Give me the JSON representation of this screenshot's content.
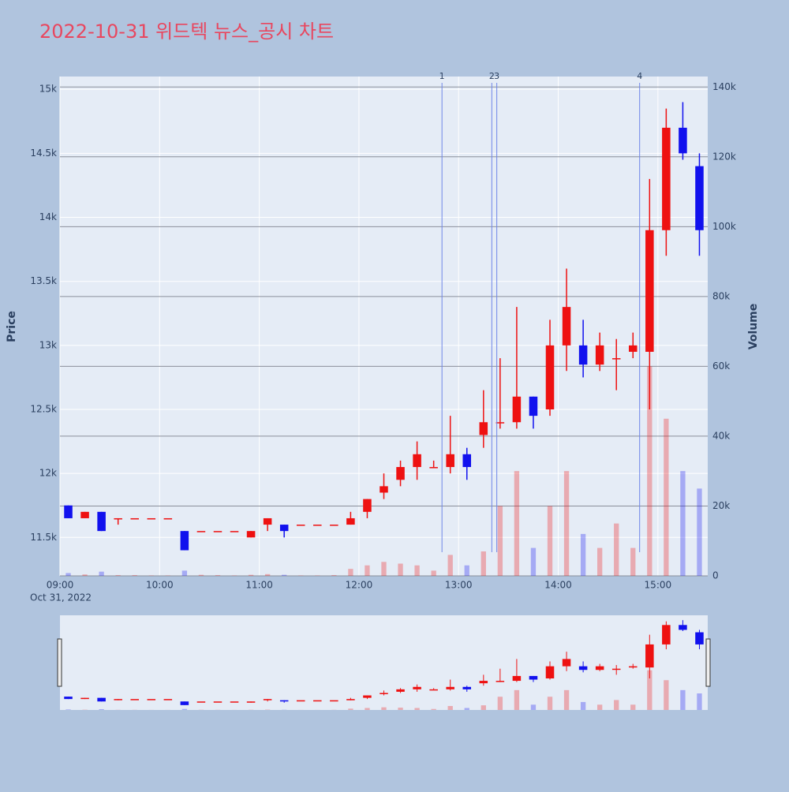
{
  "chart_data": {
    "type": "candlestick",
    "title": "2022-10-31 위드텍 뉴스_공시 차트",
    "y_label": "Price",
    "y2_label": "Volume",
    "date_label": "Oct 31, 2022",
    "x": [
      "09:00",
      "09:10",
      "09:20",
      "09:30",
      "09:40",
      "09:50",
      "10:00",
      "10:10",
      "10:20",
      "10:30",
      "10:40",
      "10:50",
      "11:00",
      "11:10",
      "11:20",
      "11:30",
      "11:40",
      "11:50",
      "12:00",
      "12:10",
      "12:20",
      "12:30",
      "12:40",
      "12:50",
      "13:00",
      "13:10",
      "13:20",
      "13:30",
      "13:40",
      "13:50",
      "14:00",
      "14:10",
      "14:20",
      "14:30",
      "14:40",
      "14:50",
      "15:00",
      "15:10",
      "15:20"
    ],
    "open": [
      11750,
      11650,
      11700,
      11650,
      11650,
      11650,
      11650,
      11550,
      11550,
      11550,
      11550,
      11500,
      11600,
      11600,
      11600,
      11600,
      11600,
      11600,
      11700,
      11850,
      11950,
      12050,
      12050,
      12050,
      12150,
      12300,
      12400,
      12400,
      12600,
      12500,
      13000,
      13000,
      12850,
      12900,
      12950,
      12950,
      13900,
      14700,
      14400
    ],
    "high": [
      11750,
      11700,
      11700,
      11650,
      11650,
      11650,
      11650,
      11550,
      11550,
      11550,
      11550,
      11550,
      11650,
      11600,
      11600,
      11600,
      11600,
      11700,
      11800,
      12000,
      12100,
      12250,
      12100,
      12450,
      12200,
      12650,
      12900,
      13300,
      12600,
      13200,
      13600,
      13200,
      13100,
      13050,
      13100,
      14300,
      14850,
      14900,
      14500
    ],
    "low": [
      11650,
      11650,
      11550,
      11600,
      11650,
      11650,
      11650,
      11400,
      11550,
      11550,
      11550,
      11500,
      11550,
      11500,
      11600,
      11600,
      11600,
      11600,
      11650,
      11800,
      11900,
      11950,
      12050,
      12000,
      11950,
      12200,
      12350,
      12350,
      12350,
      12450,
      12800,
      12750,
      12800,
      12650,
      12900,
      12500,
      13700,
      14450,
      13700
    ],
    "close": [
      11650,
      11700,
      11550,
      11650,
      11650,
      11650,
      11650,
      11400,
      11550,
      11550,
      11550,
      11550,
      11650,
      11550,
      11600,
      11600,
      11600,
      11650,
      11800,
      11900,
      12050,
      12150,
      12050,
      12150,
      12050,
      12400,
      12400,
      12600,
      12450,
      13000,
      13300,
      12850,
      13000,
      12900,
      13000,
      13900,
      14700,
      14500,
      13900
    ],
    "volume": [
      800,
      400,
      1200,
      200,
      200,
      100,
      100,
      1500,
      300,
      200,
      100,
      300,
      500,
      300,
      100,
      100,
      200,
      2000,
      3000,
      4000,
      3500,
      3000,
      1500,
      6000,
      3000,
      7000,
      20000,
      30000,
      8000,
      20000,
      30000,
      12000,
      8000,
      15000,
      8000,
      60000,
      45000,
      30000,
      25000
    ],
    "up_color": "#ee1111",
    "down_color": "#1111ee",
    "xlim": [
      "09:00",
      "15:30"
    ],
    "xticks": [
      "09:00",
      "10:00",
      "11:00",
      "12:00",
      "13:00",
      "14:00",
      "15:00"
    ],
    "ylim": [
      11200,
      15100
    ],
    "yticks": [
      {
        "value": 11500,
        "label": "11.5k"
      },
      {
        "value": 12000,
        "label": "12k"
      },
      {
        "value": 12500,
        "label": "12.5k"
      },
      {
        "value": 13000,
        "label": "13k"
      },
      {
        "value": 13500,
        "label": "13.5k"
      },
      {
        "value": 14000,
        "label": "14k"
      },
      {
        "value": 14500,
        "label": "14.5k"
      },
      {
        "value": 15000,
        "label": "15k"
      }
    ],
    "y2lim": [
      0,
      143000
    ],
    "y2ticks": [
      0,
      {
        "value": 20000,
        "label": "20k"
      },
      {
        "value": 40000,
        "label": "40k"
      },
      {
        "value": 60000,
        "label": "60k"
      },
      {
        "value": 80000,
        "label": "80k"
      },
      {
        "value": 100000,
        "label": "100k"
      },
      {
        "value": 120000,
        "label": "120k"
      },
      {
        "value": 140000,
        "label": "140k"
      }
    ],
    "markers": [
      {
        "label": "1",
        "x": "12:50"
      },
      {
        "label": "2",
        "x": "13:20"
      },
      {
        "label": "3",
        "x": "13:23"
      },
      {
        "label": "4",
        "x": "14:49"
      }
    ],
    "grid": true
  }
}
